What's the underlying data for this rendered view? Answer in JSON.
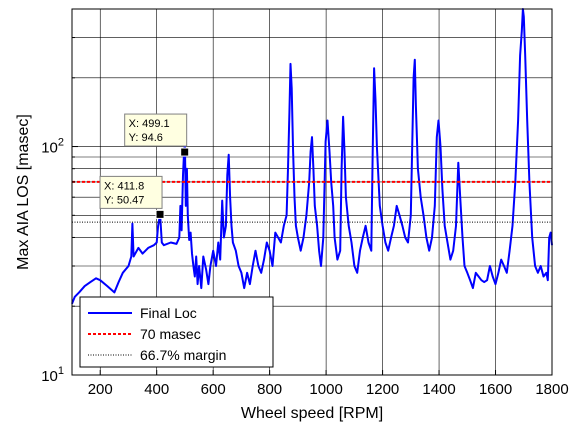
{
  "chart_data": {
    "type": "line",
    "title": "",
    "xlabel": "Wheel speed [RPM]",
    "ylabel": "Max AIA LOS [masec]",
    "xlim": [
      100,
      1800
    ],
    "ylim": [
      10,
      400
    ],
    "yscale": "log",
    "grid": true,
    "legend_position": "bottom-left",
    "x_ticks": [
      200,
      400,
      600,
      800,
      1000,
      1200,
      1400,
      1600,
      1800
    ],
    "x_tick_labels": [
      "200",
      "400",
      "600",
      "800",
      "1000",
      "1200",
      "1400",
      "1600",
      "1800"
    ],
    "y_ticks": [
      10,
      100
    ],
    "y_tick_bases": [
      "10",
      "10"
    ],
    "y_tick_exps": [
      "1",
      "2"
    ],
    "series": [
      {
        "name": "Final Loc",
        "color": "#0000ff",
        "style": "solid",
        "points": [
          [
            100,
            20.5
          ],
          [
            110,
            22
          ],
          [
            125,
            23
          ],
          [
            145,
            24.5
          ],
          [
            165,
            25.5
          ],
          [
            185,
            26.5
          ],
          [
            200,
            26
          ],
          [
            225,
            24.5
          ],
          [
            250,
            23
          ],
          [
            265,
            25.5
          ],
          [
            280,
            28
          ],
          [
            300,
            30
          ],
          [
            310,
            33
          ],
          [
            314,
            46
          ],
          [
            318,
            33
          ],
          [
            335,
            36
          ],
          [
            350,
            34
          ],
          [
            370,
            36
          ],
          [
            390,
            37
          ],
          [
            400,
            38
          ],
          [
            405,
            45
          ],
          [
            412,
            50.5
          ],
          [
            418,
            38
          ],
          [
            425,
            37
          ],
          [
            450,
            38
          ],
          [
            470,
            37.5
          ],
          [
            480,
            40
          ],
          [
            484,
            55
          ],
          [
            488,
            43
          ],
          [
            493,
            75
          ],
          [
            497,
            95
          ],
          [
            500,
            103
          ],
          [
            503,
            55
          ],
          [
            507,
            80
          ],
          [
            510,
            50
          ],
          [
            515,
            39
          ],
          [
            520,
            42
          ],
          [
            525,
            34
          ],
          [
            530,
            30
          ],
          [
            535,
            27
          ],
          [
            540,
            33
          ],
          [
            545,
            25
          ],
          [
            550,
            30
          ],
          [
            558,
            24
          ],
          [
            565,
            33
          ],
          [
            575,
            29
          ],
          [
            583,
            25
          ],
          [
            590,
            30
          ],
          [
            600,
            35
          ],
          [
            610,
            30
          ],
          [
            618,
            38
          ],
          [
            625,
            32
          ],
          [
            632,
            58
          ],
          [
            638,
            40
          ],
          [
            645,
            45
          ],
          [
            650,
            75
          ],
          [
            655,
            92
          ],
          [
            660,
            60
          ],
          [
            665,
            45
          ],
          [
            670,
            38
          ],
          [
            680,
            35
          ],
          [
            690,
            30
          ],
          [
            700,
            28
          ],
          [
            710,
            24
          ],
          [
            720,
            28
          ],
          [
            730,
            25
          ],
          [
            740,
            30
          ],
          [
            750,
            35
          ],
          [
            760,
            30
          ],
          [
            770,
            28
          ],
          [
            780,
            32
          ],
          [
            790,
            38
          ],
          [
            800,
            35
          ],
          [
            810,
            30
          ],
          [
            820,
            42
          ],
          [
            830,
            40
          ],
          [
            840,
            38
          ],
          [
            850,
            45
          ],
          [
            860,
            50
          ],
          [
            865,
            80
          ],
          [
            870,
            140
          ],
          [
            874,
            230
          ],
          [
            878,
            180
          ],
          [
            883,
            95
          ],
          [
            888,
            60
          ],
          [
            893,
            45
          ],
          [
            900,
            40
          ],
          [
            910,
            35
          ],
          [
            920,
            40
          ],
          [
            930,
            50
          ],
          [
            940,
            70
          ],
          [
            945,
            95
          ],
          [
            950,
            110
          ],
          [
            955,
            80
          ],
          [
            960,
            55
          ],
          [
            968,
            45
          ],
          [
            975,
            35
          ],
          [
            982,
            30
          ],
          [
            990,
            40
          ],
          [
            998,
            105
          ],
          [
            1005,
            130
          ],
          [
            1012,
            95
          ],
          [
            1018,
            70
          ],
          [
            1025,
            55
          ],
          [
            1030,
            40
          ],
          [
            1040,
            32
          ],
          [
            1050,
            35
          ],
          [
            1055,
            80
          ],
          [
            1060,
            135
          ],
          [
            1065,
            95
          ],
          [
            1070,
            60
          ],
          [
            1080,
            45
          ],
          [
            1090,
            38
          ],
          [
            1100,
            30
          ],
          [
            1110,
            28
          ],
          [
            1120,
            35
          ],
          [
            1130,
            40
          ],
          [
            1140,
            45
          ],
          [
            1150,
            38
          ],
          [
            1160,
            35
          ],
          [
            1165,
            95
          ],
          [
            1170,
            220
          ],
          [
            1175,
            160
          ],
          [
            1180,
            100
          ],
          [
            1190,
            55
          ],
          [
            1200,
            45
          ],
          [
            1210,
            38
          ],
          [
            1220,
            35
          ],
          [
            1230,
            40
          ],
          [
            1240,
            45
          ],
          [
            1250,
            55
          ],
          [
            1260,
            50
          ],
          [
            1270,
            45
          ],
          [
            1280,
            40
          ],
          [
            1290,
            38
          ],
          [
            1300,
            50
          ],
          [
            1305,
            100
          ],
          [
            1310,
            200
          ],
          [
            1314,
            240
          ],
          [
            1318,
            150
          ],
          [
            1325,
            80
          ],
          [
            1335,
            60
          ],
          [
            1345,
            50
          ],
          [
            1355,
            40
          ],
          [
            1365,
            35
          ],
          [
            1375,
            40
          ],
          [
            1385,
            55
          ],
          [
            1392,
            110
          ],
          [
            1398,
            130
          ],
          [
            1405,
            100
          ],
          [
            1412,
            65
          ],
          [
            1420,
            45
          ],
          [
            1430,
            38
          ],
          [
            1440,
            32
          ],
          [
            1450,
            35
          ],
          [
            1460,
            45
          ],
          [
            1468,
            85
          ],
          [
            1475,
            60
          ],
          [
            1483,
            40
          ],
          [
            1490,
            30
          ],
          [
            1500,
            28
          ],
          [
            1510,
            26
          ],
          [
            1520,
            24
          ],
          [
            1530,
            28
          ],
          [
            1540,
            27
          ],
          [
            1550,
            26
          ],
          [
            1560,
            25.5
          ],
          [
            1570,
            26
          ],
          [
            1580,
            30
          ],
          [
            1590,
            27
          ],
          [
            1600,
            25
          ],
          [
            1610,
            28
          ],
          [
            1620,
            32
          ],
          [
            1630,
            30
          ],
          [
            1640,
            28
          ],
          [
            1650,
            35
          ],
          [
            1660,
            45
          ],
          [
            1670,
            70
          ],
          [
            1680,
            130
          ],
          [
            1687,
            250
          ],
          [
            1693,
            320
          ],
          [
            1697,
            400
          ],
          [
            1700,
            370
          ],
          [
            1705,
            250
          ],
          [
            1712,
            130
          ],
          [
            1720,
            70
          ],
          [
            1730,
            40
          ],
          [
            1740,
            30
          ],
          [
            1750,
            28
          ],
          [
            1760,
            30
          ],
          [
            1770,
            27
          ],
          [
            1780,
            28
          ],
          [
            1785,
            26
          ],
          [
            1790,
            40
          ],
          [
            1795,
            42
          ],
          [
            1800,
            37
          ]
        ]
      },
      {
        "name": "70 masec",
        "color": "#ff0000",
        "style": "dashed",
        "points": [
          [
            100,
            70
          ],
          [
            1800,
            70
          ]
        ]
      },
      {
        "name": "66.7% margin",
        "color": "#000000",
        "style": "dotted",
        "points": [
          [
            100,
            46.7
          ],
          [
            1800,
            46.7
          ]
        ]
      }
    ],
    "annotations": [
      {
        "x": 499.1,
        "y": 94.6,
        "label_x": "X: 499.1",
        "label_y": "Y: 94.6"
      },
      {
        "x": 411.8,
        "y": 50.47,
        "label_x": "X: 411.8",
        "label_y": "Y: 50.47"
      }
    ]
  }
}
